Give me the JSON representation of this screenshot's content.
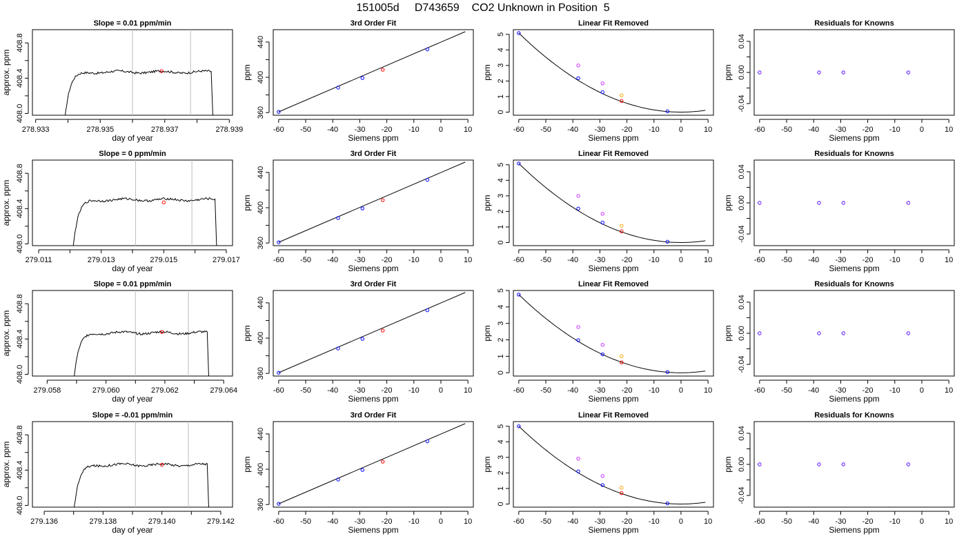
{
  "page_title": "151005d     D743659    CO2 Unknown in Position  5",
  "colors": {
    "trace": "#000000",
    "known": "#0000ff",
    "unknown": "#ff0000",
    "raw_known": "#cc33ff",
    "raw_unknown": "#ffa500",
    "window": "#bebebe"
  },
  "chart_data": [
    {
      "row": 1,
      "type": "line",
      "panel": "trace",
      "title": "Slope =  0.01  ppm/min",
      "xlabel": "day of year",
      "ylabel": "approx. ppm",
      "xlim": [
        278.9329,
        278.9391
      ],
      "ylim": [
        407.98,
        408.95
      ],
      "xticks": [
        "278.933",
        "278.935",
        "278.937",
        "278.939"
      ],
      "xtick_values": [
        278.933,
        278.935,
        278.937,
        278.939
      ],
      "yticks": [
        "408.0",
        "408.4",
        "408.8"
      ],
      "ytick_values": [
        408.0,
        408.4,
        408.8
      ],
      "yminor": [
        408.2,
        408.6
      ],
      "window": [
        278.936,
        278.9378
      ],
      "trace": {
        "x_start": 278.9339,
        "x_end": 278.9385,
        "plateau": 408.47
      },
      "marker": {
        "x": 278.9369,
        "y": 408.48
      }
    },
    {
      "row": 1,
      "type": "scatter",
      "panel": "fit",
      "title": "3rd Order Fit",
      "xlabel": "Siemens ppm",
      "ylabel": "ppm",
      "xlim": [
        -62,
        12
      ],
      "ylim": [
        357,
        454
      ],
      "xticks": [
        "-60",
        "-50",
        "-40",
        "-30",
        "-20",
        "-10",
        "0",
        "10"
      ],
      "xtick_values": [
        -60,
        -50,
        -40,
        -30,
        -20,
        -10,
        0,
        10
      ],
      "yticks": [
        "360",
        "400",
        "440"
      ],
      "ytick_values": [
        360,
        400,
        440
      ],
      "yminor": [
        380,
        420
      ],
      "curve": {
        "x0": -60,
        "x1": 9,
        "y_at_x0": 360.8,
        "slope": 1.318
      },
      "knowns": [
        {
          "x": -60,
          "y": 360.8
        },
        {
          "x": -38,
          "y": 388.3
        },
        {
          "x": -29,
          "y": 399.2
        },
        {
          "x": -5,
          "y": 431.6
        }
      ],
      "unknown": {
        "x": -21.5,
        "y": 408.6
      }
    },
    {
      "row": 1,
      "type": "scatter",
      "panel": "linear_removed",
      "title": "Linear Fit Removed",
      "xlabel": "Siemens ppm",
      "ylabel": "ppm",
      "xlim": [
        -62,
        12
      ],
      "ylim": [
        -0.2,
        5.3
      ],
      "xticks": [
        "-60",
        "-50",
        "-40",
        "-30",
        "-20",
        "-10",
        "0",
        "10"
      ],
      "xtick_values": [
        -60,
        -50,
        -40,
        -30,
        -20,
        -10,
        0,
        10
      ],
      "yticks": [
        "0",
        "1",
        "2",
        "3",
        "4",
        "5"
      ],
      "ytick_values": [
        0,
        1,
        2,
        3,
        4,
        5
      ],
      "curve": {
        "a": 0.001413,
        "x0": -60,
        "x1": 9
      },
      "knowns": [
        {
          "x": -60,
          "y": 5.08
        },
        {
          "x": -38,
          "y": 2.18
        },
        {
          "x": -29,
          "y": 1.28
        },
        {
          "x": -5,
          "y": 0.05
        }
      ],
      "raw_knowns": [
        {
          "x": -38,
          "y": 3.0
        },
        {
          "x": -29,
          "y": 1.85
        }
      ],
      "raw_unknown": {
        "x": -22,
        "y": 1.08
      },
      "unknown": {
        "x": -22,
        "y": 0.72
      }
    },
    {
      "row": 1,
      "type": "scatter",
      "panel": "residuals",
      "title": "Residuals for Knowns",
      "xlabel": "Siemens ppm",
      "ylabel": "ppm",
      "xlim": [
        -62,
        12
      ],
      "ylim": [
        -0.055,
        0.055
      ],
      "xticks": [
        "-60",
        "-50",
        "-40",
        "-30",
        "-20",
        "-10",
        "0",
        "10"
      ],
      "xtick_values": [
        -60,
        -50,
        -40,
        -30,
        -20,
        -10,
        0,
        10
      ],
      "yticks": [
        "-0.04",
        "0.00",
        "0.04"
      ],
      "ytick_values": [
        -0.04,
        0,
        0.04
      ],
      "yminor": [
        -0.02,
        0.02
      ],
      "points": [
        {
          "x": -60,
          "y": 0
        },
        {
          "x": -38,
          "y": 0
        },
        {
          "x": -29,
          "y": 0
        },
        {
          "x": -5,
          "y": 0
        }
      ]
    },
    {
      "row": 2,
      "type": "line",
      "panel": "trace",
      "title": "Slope =  0  ppm/min",
      "xlabel": "day of year",
      "ylabel": "approx. ppm",
      "xlim": [
        279.0108,
        279.0172
      ],
      "ylim": [
        407.98,
        408.95
      ],
      "xticks": [
        "279.011",
        "279.013",
        "279.015",
        "279.017"
      ],
      "xtick_values": [
        279.011,
        279.013,
        279.015,
        279.017
      ],
      "yticks": [
        "408.0",
        "408.4",
        "408.8"
      ],
      "ytick_values": [
        408.0,
        408.4,
        408.8
      ],
      "yminor": [
        408.2,
        408.6
      ],
      "window": [
        279.0141,
        279.0159
      ],
      "trace": {
        "x_start": 279.0121,
        "x_end": 279.0167,
        "plateau": 408.5
      },
      "marker": {
        "x": 279.015,
        "y": 408.47
      }
    },
    {
      "row": 2,
      "type": "scatter",
      "panel": "fit",
      "title": "3rd Order Fit",
      "xlabel": "Siemens ppm",
      "ylabel": "ppm",
      "xlim": [
        -62,
        12
      ],
      "ylim": [
        357,
        454
      ],
      "xticks": [
        "-60",
        "-50",
        "-40",
        "-30",
        "-20",
        "-10",
        "0",
        "10"
      ],
      "xtick_values": [
        -60,
        -50,
        -40,
        -30,
        -20,
        -10,
        0,
        10
      ],
      "yticks": [
        "360",
        "400",
        "440"
      ],
      "ytick_values": [
        360,
        400,
        440
      ],
      "yminor": [
        380,
        420
      ],
      "curve": {
        "x0": -60,
        "x1": 9,
        "y_at_x0": 360.8,
        "slope": 1.318
      },
      "knowns": [
        {
          "x": -60,
          "y": 360.8
        },
        {
          "x": -38,
          "y": 388.3
        },
        {
          "x": -29,
          "y": 399.2
        },
        {
          "x": -5,
          "y": 431.6
        }
      ],
      "unknown": {
        "x": -21.5,
        "y": 408.6
      }
    },
    {
      "row": 2,
      "type": "scatter",
      "panel": "linear_removed",
      "title": "Linear Fit Removed",
      "xlabel": "Siemens ppm",
      "ylabel": "ppm",
      "xlim": [
        -62,
        12
      ],
      "ylim": [
        -0.2,
        5.3
      ],
      "xticks": [
        "-60",
        "-50",
        "-40",
        "-30",
        "-20",
        "-10",
        "0",
        "10"
      ],
      "xtick_values": [
        -60,
        -50,
        -40,
        -30,
        -20,
        -10,
        0,
        10
      ],
      "yticks": [
        "0",
        "1",
        "2",
        "3",
        "4",
        "5"
      ],
      "ytick_values": [
        0,
        1,
        2,
        3,
        4,
        5
      ],
      "curve": {
        "a": 0.001413,
        "x0": -60,
        "x1": 9
      },
      "knowns": [
        {
          "x": -60,
          "y": 5.08
        },
        {
          "x": -38,
          "y": 2.18
        },
        {
          "x": -29,
          "y": 1.28
        },
        {
          "x": -5,
          "y": 0.05
        }
      ],
      "raw_knowns": [
        {
          "x": -38,
          "y": 3.0
        },
        {
          "x": -29,
          "y": 1.85
        }
      ],
      "raw_unknown": {
        "x": -22,
        "y": 1.08
      },
      "unknown": {
        "x": -22,
        "y": 0.72
      }
    },
    {
      "row": 2,
      "type": "scatter",
      "panel": "residuals",
      "title": "Residuals for Knowns",
      "xlabel": "Siemens ppm",
      "ylabel": "ppm",
      "xlim": [
        -62,
        12
      ],
      "ylim": [
        -0.055,
        0.055
      ],
      "xticks": [
        "-60",
        "-50",
        "-40",
        "-30",
        "-20",
        "-10",
        "0",
        "10"
      ],
      "xtick_values": [
        -60,
        -50,
        -40,
        -30,
        -20,
        -10,
        0,
        10
      ],
      "yticks": [
        "-0.04",
        "0.00",
        "0.04"
      ],
      "ytick_values": [
        -0.04,
        0,
        0.04
      ],
      "yminor": [
        -0.02,
        0.02
      ],
      "points": [
        {
          "x": -60,
          "y": 0
        },
        {
          "x": -38,
          "y": 0
        },
        {
          "x": -29,
          "y": 0
        },
        {
          "x": -5,
          "y": 0
        }
      ]
    },
    {
      "row": 3,
      "type": "line",
      "panel": "trace",
      "title": "Slope =  0.01  ppm/min",
      "xlabel": "day of year",
      "ylabel": "approx. ppm",
      "xlim": [
        279.0575,
        279.0643
      ],
      "ylim": [
        407.98,
        408.95
      ],
      "xticks": [
        "279.058",
        "279.060",
        "279.062",
        "279.064"
      ],
      "xtick_values": [
        279.058,
        279.06,
        279.062,
        279.064
      ],
      "yticks": [
        "408.0",
        "408.4",
        "408.8"
      ],
      "ytick_values": [
        408.0,
        408.4,
        408.8
      ],
      "yminor": [
        408.2,
        408.6
      ],
      "window": [
        279.061,
        279.0628
      ],
      "trace": {
        "x_start": 279.0589,
        "x_end": 279.0635,
        "plateau": 408.47
      },
      "marker": {
        "x": 279.0619,
        "y": 408.48
      }
    },
    {
      "row": 3,
      "type": "scatter",
      "panel": "fit",
      "title": "3rd Order Fit",
      "xlabel": "Siemens ppm",
      "ylabel": "ppm",
      "xlim": [
        -62,
        12
      ],
      "ylim": [
        357,
        454
      ],
      "xticks": [
        "-60",
        "-50",
        "-40",
        "-30",
        "-20",
        "-10",
        "0",
        "10"
      ],
      "xtick_values": [
        -60,
        -50,
        -40,
        -30,
        -20,
        -10,
        0,
        10
      ],
      "yticks": [
        "360",
        "400",
        "440"
      ],
      "ytick_values": [
        360,
        400,
        440
      ],
      "yminor": [
        380,
        420
      ],
      "curve": {
        "x0": -60,
        "x1": 9,
        "y_at_x0": 360.8,
        "slope": 1.318
      },
      "knowns": [
        {
          "x": -60,
          "y": 360.8
        },
        {
          "x": -38,
          "y": 388.3
        },
        {
          "x": -29,
          "y": 399.2
        },
        {
          "x": -5,
          "y": 431.6
        }
      ],
      "unknown": {
        "x": -21.5,
        "y": 408.6
      }
    },
    {
      "row": 3,
      "type": "scatter",
      "panel": "linear_removed",
      "title": "Linear Fit Removed",
      "xlabel": "Siemens ppm",
      "ylabel": "ppm",
      "xlim": [
        -62,
        12
      ],
      "ylim": [
        -0.2,
        5.0
      ],
      "xticks": [
        "-60",
        "-50",
        "-40",
        "-30",
        "-20",
        "-10",
        "0",
        "10"
      ],
      "xtick_values": [
        -60,
        -50,
        -40,
        -30,
        -20,
        -10,
        0,
        10
      ],
      "yticks": [
        "0",
        "1",
        "2",
        "3",
        "4",
        "5"
      ],
      "ytick_values": [
        0,
        1,
        2,
        3,
        4,
        5
      ],
      "curve": {
        "a": 0.00132,
        "x0": -60,
        "x1": 9
      },
      "knowns": [
        {
          "x": -60,
          "y": 4.75
        },
        {
          "x": -38,
          "y": 1.98
        },
        {
          "x": -29,
          "y": 1.12
        },
        {
          "x": -5,
          "y": 0.04
        }
      ],
      "raw_knowns": [
        {
          "x": -38,
          "y": 2.78
        },
        {
          "x": -29,
          "y": 1.7
        }
      ],
      "raw_unknown": {
        "x": -22,
        "y": 1.0
      },
      "unknown": {
        "x": -22,
        "y": 0.63
      }
    },
    {
      "row": 3,
      "type": "scatter",
      "panel": "residuals",
      "title": "Residuals for Knowns",
      "xlabel": "Siemens ppm",
      "ylabel": "ppm",
      "xlim": [
        -62,
        12
      ],
      "ylim": [
        -0.055,
        0.055
      ],
      "xticks": [
        "-60",
        "-50",
        "-40",
        "-30",
        "-20",
        "-10",
        "0",
        "10"
      ],
      "xtick_values": [
        -60,
        -50,
        -40,
        -30,
        -20,
        -10,
        0,
        10
      ],
      "yticks": [
        "-0.04",
        "0.00",
        "0.04"
      ],
      "ytick_values": [
        -0.04,
        0,
        0.04
      ],
      "yminor": [
        -0.02,
        0.02
      ],
      "points": [
        {
          "x": -60,
          "y": 0
        },
        {
          "x": -38,
          "y": 0
        },
        {
          "x": -29,
          "y": 0
        },
        {
          "x": -5,
          "y": 0
        }
      ]
    },
    {
      "row": 4,
      "type": "line",
      "panel": "trace",
      "title": "Slope =  -0.01  ppm/min",
      "xlabel": "day of year",
      "ylabel": "approx. ppm",
      "xlim": [
        279.1356,
        279.1424
      ],
      "ylim": [
        407.98,
        408.95
      ],
      "xticks": [
        "279.136",
        "279.138",
        "279.140",
        "279.142"
      ],
      "xtick_values": [
        279.136,
        279.138,
        279.14,
        279.142
      ],
      "yticks": [
        "408.0",
        "408.4",
        "408.8"
      ],
      "ytick_values": [
        408.0,
        408.4,
        408.8
      ],
      "yminor": [
        408.2,
        408.6
      ],
      "window": [
        279.1391,
        279.1409
      ],
      "trace": {
        "x_start": 279.137,
        "x_end": 279.1416,
        "plateau": 408.46
      },
      "marker": {
        "x": 279.14,
        "y": 408.46
      }
    },
    {
      "row": 4,
      "type": "scatter",
      "panel": "fit",
      "title": "3rd Order Fit",
      "xlabel": "Siemens ppm",
      "ylabel": "ppm",
      "xlim": [
        -62,
        12
      ],
      "ylim": [
        357,
        454
      ],
      "xticks": [
        "-60",
        "-50",
        "-40",
        "-30",
        "-20",
        "-10",
        "0",
        "10"
      ],
      "xtick_values": [
        -60,
        -50,
        -40,
        -30,
        -20,
        -10,
        0,
        10
      ],
      "yticks": [
        "360",
        "400",
        "440"
      ],
      "ytick_values": [
        360,
        400,
        440
      ],
      "yminor": [
        380,
        420
      ],
      "curve": {
        "x0": -60,
        "x1": 9,
        "y_at_x0": 360.8,
        "slope": 1.318
      },
      "knowns": [
        {
          "x": -60,
          "y": 360.8
        },
        {
          "x": -38,
          "y": 388.3
        },
        {
          "x": -29,
          "y": 399.2
        },
        {
          "x": -5,
          "y": 431.6
        }
      ],
      "unknown": {
        "x": -21.5,
        "y": 408.6
      }
    },
    {
      "row": 4,
      "type": "scatter",
      "panel": "linear_removed",
      "title": "Linear Fit Removed",
      "xlabel": "Siemens ppm",
      "ylabel": "ppm",
      "xlim": [
        -62,
        12
      ],
      "ylim": [
        -0.2,
        5.3
      ],
      "xticks": [
        "-60",
        "-50",
        "-40",
        "-30",
        "-20",
        "-10",
        "0",
        "10"
      ],
      "xtick_values": [
        -60,
        -50,
        -40,
        -30,
        -20,
        -10,
        0,
        10
      ],
      "yticks": [
        "0",
        "1",
        "2",
        "3",
        "4",
        "5"
      ],
      "ytick_values": [
        0,
        1,
        2,
        3,
        4,
        5
      ],
      "curve": {
        "a": 0.00139,
        "x0": -60,
        "x1": 9
      },
      "knowns": [
        {
          "x": -60,
          "y": 5.0
        },
        {
          "x": -38,
          "y": 2.1
        },
        {
          "x": -29,
          "y": 1.22
        },
        {
          "x": -5,
          "y": 0.04
        }
      ],
      "raw_knowns": [
        {
          "x": -38,
          "y": 2.92
        },
        {
          "x": -29,
          "y": 1.8
        }
      ],
      "raw_unknown": {
        "x": -22,
        "y": 1.05
      },
      "unknown": {
        "x": -22,
        "y": 0.7
      }
    },
    {
      "row": 4,
      "type": "scatter",
      "panel": "residuals",
      "title": "Residuals for Knowns",
      "xlabel": "Siemens ppm",
      "ylabel": "ppm",
      "xlim": [
        -62,
        12
      ],
      "ylim": [
        -0.055,
        0.055
      ],
      "xticks": [
        "-60",
        "-50",
        "-40",
        "-30",
        "-20",
        "-10",
        "0",
        "10"
      ],
      "xtick_values": [
        -60,
        -50,
        -40,
        -30,
        -20,
        -10,
        0,
        10
      ],
      "yticks": [
        "-0.04",
        "0.00",
        "0.04"
      ],
      "ytick_values": [
        -0.04,
        0,
        0.04
      ],
      "yminor": [
        -0.02,
        0.02
      ],
      "points": [
        {
          "x": -60,
          "y": 0
        },
        {
          "x": -38,
          "y": 0
        },
        {
          "x": -29,
          "y": 0
        },
        {
          "x": -5,
          "y": 0
        }
      ]
    }
  ]
}
